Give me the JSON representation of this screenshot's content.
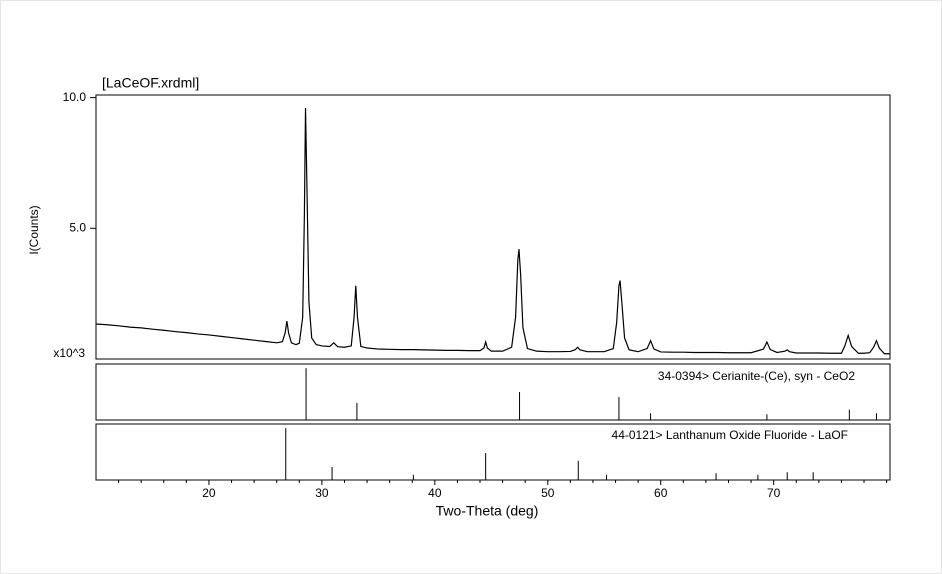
{
  "chart_data": [
    {
      "type": "line",
      "title": "[LaCeOF.xrdml]",
      "y_label": "I(Counts)",
      "y_multiplier_label": "x10^3",
      "color": "#000000",
      "xlim": [
        10,
        80.3
      ],
      "ylim": [
        0,
        10.1
      ],
      "yticks": [
        {
          "value": 5,
          "label": "5.0"
        },
        {
          "value": 10,
          "label": "10.0"
        }
      ],
      "x": [
        10,
        11,
        12,
        13,
        14,
        15,
        16,
        17,
        18,
        19,
        20,
        21,
        22,
        23,
        24,
        25,
        26,
        26.5,
        26.75,
        26.9,
        27.05,
        27.3,
        27.7,
        28.0,
        28.3,
        28.45,
        28.55,
        28.7,
        28.85,
        29.1,
        29.5,
        30,
        30.7,
        31.05,
        31.4,
        32,
        32.6,
        32.85,
        33.0,
        33.15,
        33.45,
        34,
        35,
        36,
        37,
        38,
        39,
        40,
        41,
        42,
        43,
        44,
        44.35,
        44.5,
        44.65,
        45,
        46,
        46.8,
        47.15,
        47.35,
        47.45,
        47.6,
        47.8,
        48.2,
        49,
        50,
        51,
        52,
        52.45,
        52.65,
        52.85,
        53.5,
        54,
        55,
        55.8,
        56.1,
        56.3,
        56.4,
        56.55,
        56.8,
        57.2,
        58,
        58.8,
        59.1,
        59.4,
        60,
        61,
        62,
        63,
        64,
        65,
        66,
        67,
        68,
        69.1,
        69.4,
        69.7,
        70.3,
        71,
        71.2,
        71.4,
        72,
        73,
        74,
        75,
        76,
        76.3,
        76.6,
        76.9,
        77.5,
        78,
        78.5,
        78.85,
        79.1,
        79.35,
        79.8,
        80.3
      ],
      "values": [
        1.34,
        1.31,
        1.27,
        1.22,
        1.19,
        1.14,
        1.1,
        1.05,
        1.01,
        0.96,
        0.92,
        0.87,
        0.82,
        0.77,
        0.72,
        0.67,
        0.62,
        0.66,
        1.0,
        1.45,
        1.0,
        0.62,
        0.55,
        0.6,
        1.6,
        5.5,
        9.6,
        6.0,
        2.2,
        0.8,
        0.55,
        0.5,
        0.48,
        0.62,
        0.47,
        0.45,
        0.5,
        1.6,
        2.8,
        1.6,
        0.48,
        0.42,
        0.38,
        0.37,
        0.36,
        0.36,
        0.35,
        0.34,
        0.33,
        0.33,
        0.32,
        0.32,
        0.42,
        0.65,
        0.42,
        0.3,
        0.3,
        0.45,
        1.6,
        3.8,
        4.2,
        3.2,
        1.2,
        0.4,
        0.3,
        0.28,
        0.28,
        0.29,
        0.36,
        0.45,
        0.35,
        0.28,
        0.28,
        0.28,
        0.4,
        1.4,
        2.8,
        3.0,
        2.2,
        0.8,
        0.35,
        0.28,
        0.4,
        0.7,
        0.38,
        0.27,
        0.26,
        0.26,
        0.25,
        0.25,
        0.25,
        0.24,
        0.24,
        0.24,
        0.38,
        0.65,
        0.36,
        0.25,
        0.3,
        0.35,
        0.28,
        0.23,
        0.23,
        0.23,
        0.22,
        0.22,
        0.5,
        0.9,
        0.48,
        0.22,
        0.22,
        0.24,
        0.45,
        0.7,
        0.42,
        0.2,
        0.2
      ]
    },
    {
      "type": "stem",
      "label": "34-0394> Cerianite-(Ce), syn - CeO2",
      "color": "#000000",
      "xlim": [
        10,
        80.3
      ],
      "ylim": [
        0,
        108
      ],
      "x": [
        28.6,
        33.1,
        47.5,
        56.3,
        59.1,
        69.4,
        76.7,
        79.1
      ],
      "values": [
        100,
        33,
        54,
        44,
        13,
        11,
        20,
        13
      ]
    },
    {
      "type": "stem",
      "label": "44-0121> Lanthanum Oxide Fluoride - LaOF",
      "color": "#000000",
      "xlim": [
        10,
        80.3
      ],
      "ylim": [
        0,
        108
      ],
      "x_label": "Two-Theta (deg)",
      "xticks": [
        20,
        30,
        40,
        50,
        60,
        70
      ],
      "xminorticks": [
        12,
        14,
        16,
        18,
        22,
        24,
        26,
        28,
        32,
        34,
        36,
        38,
        42,
        44,
        46,
        48,
        52,
        54,
        56,
        58,
        62,
        64,
        66,
        68,
        72,
        74,
        76,
        78,
        80
      ],
      "x": [
        26.8,
        30.9,
        38.1,
        44.5,
        52.7,
        55.2,
        64.9,
        68.6,
        71.2,
        73.5
      ],
      "values": [
        100,
        25,
        10,
        52,
        37,
        10,
        13,
        10,
        15,
        15
      ]
    }
  ]
}
